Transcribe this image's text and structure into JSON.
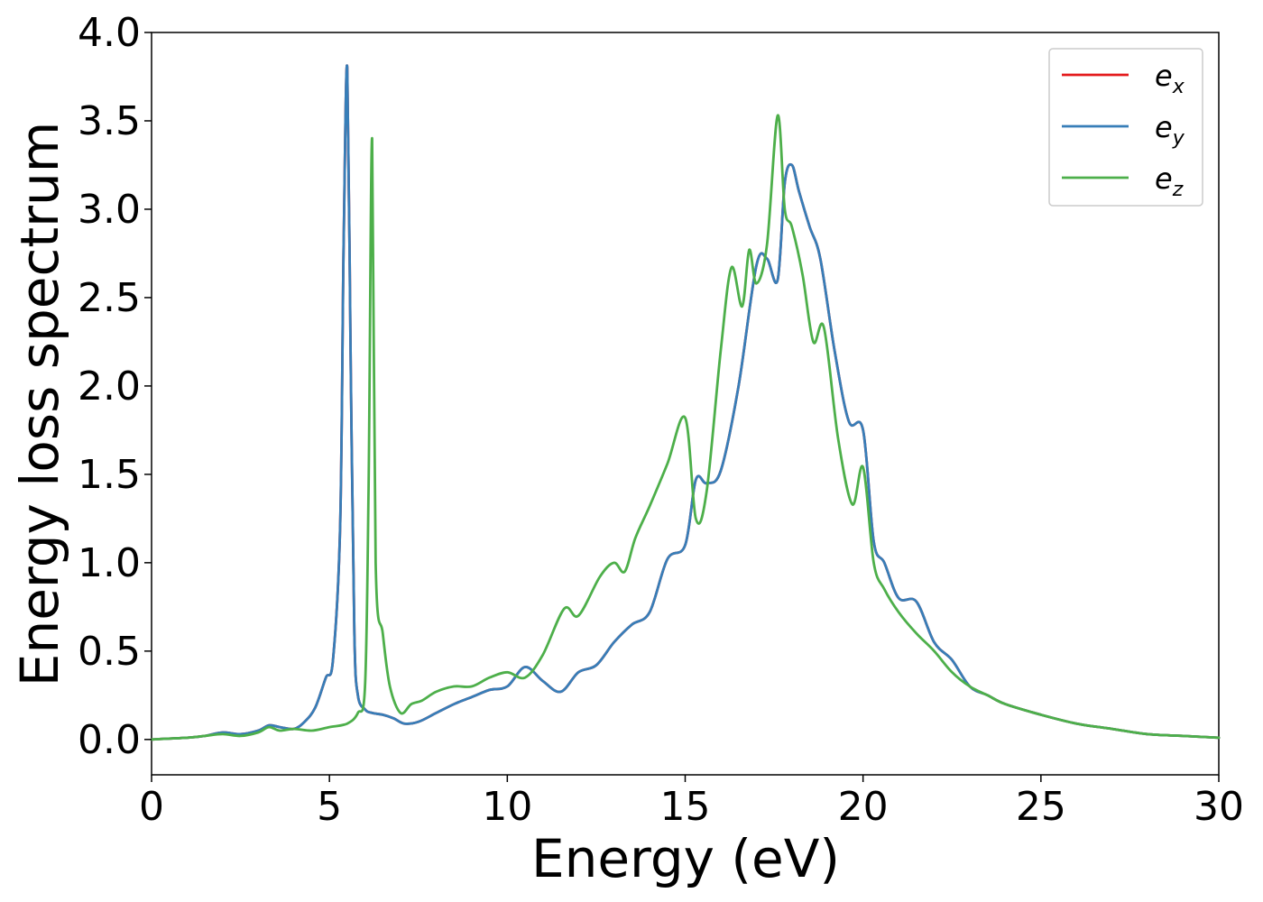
{
  "chart_data": {
    "type": "line",
    "title": "",
    "xlabel": "Energy (eV)",
    "ylabel": "Energy loss spectrum",
    "xlim": [
      0,
      30
    ],
    "ylim": [
      -0.2,
      4.0
    ],
    "xticks": [
      "0",
      "5",
      "10",
      "15",
      "20",
      "25",
      "30"
    ],
    "yticks": [
      "0.0",
      "0.5",
      "1.0",
      "1.5",
      "2.0",
      "2.5",
      "3.0",
      "3.5",
      "4.0"
    ],
    "grid": false,
    "legend_position": "top-right",
    "series": [
      {
        "name": "e",
        "name_subscript": "x",
        "color": "#e41a1c",
        "x": [
          0,
          1,
          1.5,
          2,
          2.5,
          3,
          3.3,
          3.6,
          4,
          4.3,
          4.6,
          4.9,
          5.1,
          5.3,
          5.4,
          5.5,
          5.6,
          5.7,
          5.8,
          6,
          6.2,
          6.5,
          6.8,
          7.1,
          7.5,
          8,
          8.5,
          9,
          9.5,
          10,
          10.5,
          11,
          11.5,
          12,
          12.5,
          13,
          13.5,
          14,
          14.5,
          15,
          15.3,
          15.6,
          16,
          16.5,
          17,
          17.3,
          17.6,
          17.8,
          18,
          18.2,
          18.5,
          18.8,
          19.2,
          19.6,
          20,
          20.3,
          20.6,
          21,
          21.5,
          22,
          22.5,
          23,
          23.5,
          24,
          25,
          26,
          27,
          28,
          29,
          30
        ],
        "y": [
          0,
          0.01,
          0.02,
          0.04,
          0.03,
          0.05,
          0.08,
          0.07,
          0.06,
          0.1,
          0.18,
          0.35,
          0.45,
          1.2,
          2.8,
          3.8,
          2.1,
          0.6,
          0.25,
          0.17,
          0.15,
          0.14,
          0.12,
          0.09,
          0.1,
          0.15,
          0.2,
          0.24,
          0.28,
          0.3,
          0.41,
          0.33,
          0.27,
          0.38,
          0.42,
          0.55,
          0.65,
          0.72,
          1.02,
          1.1,
          1.47,
          1.45,
          1.52,
          2.0,
          2.68,
          2.72,
          2.6,
          3.15,
          3.25,
          3.1,
          2.9,
          2.72,
          2.2,
          1.8,
          1.75,
          1.12,
          1.0,
          0.8,
          0.78,
          0.55,
          0.45,
          0.3,
          0.25,
          0.2,
          0.14,
          0.09,
          0.06,
          0.03,
          0.02,
          0.01
        ]
      },
      {
        "name": "e",
        "name_subscript": "y",
        "color": "#377eb8",
        "x": [
          0,
          1,
          1.5,
          2,
          2.5,
          3,
          3.3,
          3.6,
          4,
          4.3,
          4.6,
          4.9,
          5.1,
          5.3,
          5.4,
          5.5,
          5.6,
          5.7,
          5.8,
          6,
          6.2,
          6.5,
          6.8,
          7.1,
          7.5,
          8,
          8.5,
          9,
          9.5,
          10,
          10.5,
          11,
          11.5,
          12,
          12.5,
          13,
          13.5,
          14,
          14.5,
          15,
          15.3,
          15.6,
          16,
          16.5,
          17,
          17.3,
          17.6,
          17.8,
          18,
          18.2,
          18.5,
          18.8,
          19.2,
          19.6,
          20,
          20.3,
          20.6,
          21,
          21.5,
          22,
          22.5,
          23,
          23.5,
          24,
          25,
          26,
          27,
          28,
          29,
          30
        ],
        "y": [
          0,
          0.01,
          0.02,
          0.04,
          0.03,
          0.05,
          0.08,
          0.07,
          0.06,
          0.1,
          0.18,
          0.35,
          0.45,
          1.2,
          2.8,
          3.8,
          2.1,
          0.6,
          0.25,
          0.17,
          0.15,
          0.14,
          0.12,
          0.09,
          0.1,
          0.15,
          0.2,
          0.24,
          0.28,
          0.3,
          0.41,
          0.33,
          0.27,
          0.38,
          0.42,
          0.55,
          0.65,
          0.72,
          1.02,
          1.1,
          1.47,
          1.45,
          1.52,
          2.0,
          2.68,
          2.72,
          2.6,
          3.15,
          3.25,
          3.1,
          2.9,
          2.72,
          2.2,
          1.8,
          1.75,
          1.12,
          1.0,
          0.8,
          0.78,
          0.55,
          0.45,
          0.3,
          0.25,
          0.2,
          0.14,
          0.09,
          0.06,
          0.03,
          0.02,
          0.01
        ]
      },
      {
        "name": "e",
        "name_subscript": "z",
        "color": "#4daf4a",
        "x": [
          0,
          1,
          1.5,
          2,
          2.5,
          3,
          3.3,
          3.6,
          4,
          4.5,
          5,
          5.5,
          5.8,
          6,
          6.1,
          6.2,
          6.3,
          6.5,
          6.7,
          7,
          7.3,
          7.6,
          8,
          8.5,
          9,
          9.5,
          10,
          10.5,
          11,
          11.6,
          12,
          12.6,
          13,
          13.3,
          13.6,
          14,
          14.5,
          15,
          15.3,
          15.6,
          16,
          16.3,
          16.6,
          16.8,
          17,
          17.3,
          17.6,
          17.8,
          18,
          18.3,
          18.6,
          18.9,
          19.3,
          19.7,
          20,
          20.3,
          20.6,
          21,
          21.5,
          22,
          22.5,
          23,
          23.5,
          24,
          25,
          26,
          27,
          28,
          29,
          30
        ],
        "y": [
          0,
          0.01,
          0.02,
          0.03,
          0.02,
          0.04,
          0.07,
          0.05,
          0.06,
          0.05,
          0.07,
          0.09,
          0.15,
          0.3,
          1.4,
          3.4,
          1.0,
          0.6,
          0.3,
          0.15,
          0.2,
          0.22,
          0.27,
          0.3,
          0.3,
          0.35,
          0.38,
          0.35,
          0.48,
          0.74,
          0.7,
          0.92,
          1.0,
          0.95,
          1.14,
          1.32,
          1.56,
          1.82,
          1.25,
          1.4,
          2.2,
          2.67,
          2.45,
          2.77,
          2.58,
          2.8,
          3.53,
          3.0,
          2.9,
          2.63,
          2.25,
          2.33,
          1.7,
          1.33,
          1.54,
          1.0,
          0.85,
          0.72,
          0.6,
          0.5,
          0.38,
          0.3,
          0.25,
          0.2,
          0.14,
          0.09,
          0.06,
          0.03,
          0.02,
          0.01
        ]
      }
    ]
  }
}
